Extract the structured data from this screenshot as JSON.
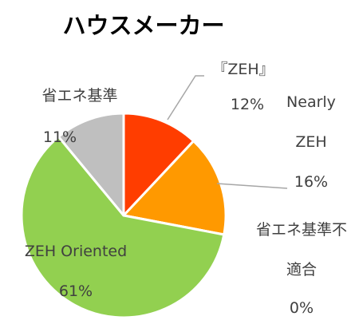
{
  "chart_data": {
    "type": "pie",
    "title": "ハウスメーカー",
    "categories": [
      "『ZEH』",
      "Nearly ZEH",
      "省エネ基準不適合",
      "ZEH Oriented",
      "省エネ基準"
    ],
    "values": [
      12,
      16,
      0,
      61,
      11
    ],
    "value_labels": [
      "12%",
      "16%",
      "0%",
      "61%",
      "11%"
    ],
    "colors": [
      "#ff3d00",
      "#ff9900",
      "#4472c4",
      "#92d050",
      "#bfbfbf"
    ]
  }
}
